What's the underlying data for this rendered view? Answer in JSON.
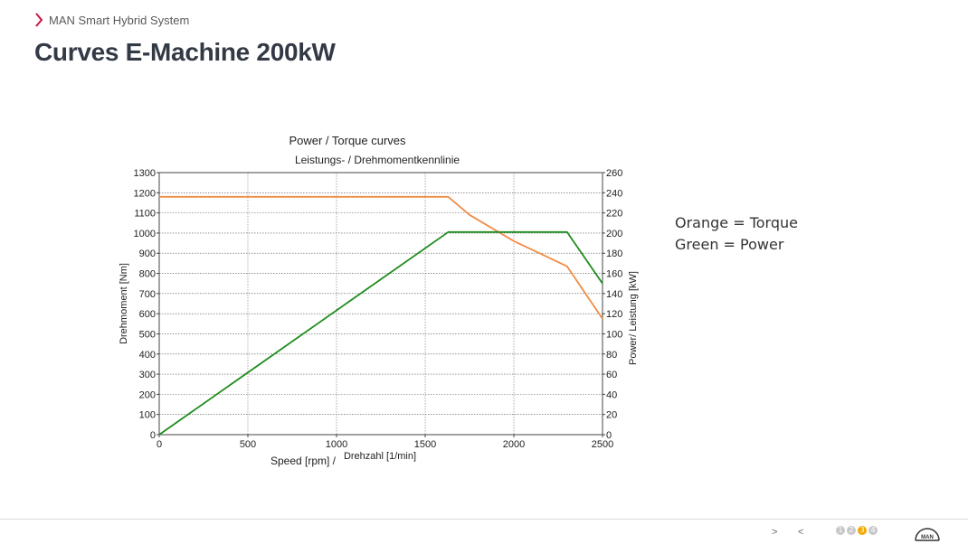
{
  "header": {
    "breadcrumb": "MAN Smart Hybrid System",
    "title": "Curves E-Machine 200kW"
  },
  "legend_note": {
    "torque": "Orange = Torque",
    "power": "Green = Power"
  },
  "colors": {
    "torque": "#f08c46",
    "power": "#1e8c1e",
    "accent": "#d0103a",
    "title": "#333a45",
    "active_page": "#f0a800"
  },
  "footer": {
    "next": ">",
    "prev": "<",
    "pages": [
      "1",
      "2",
      "3",
      "4"
    ],
    "active_page": "3",
    "logo_text": "MAN"
  },
  "chart_data": {
    "type": "line",
    "title": "Power / Torque curves",
    "subtitle": "Leistungs- / Drehmomentkennlinie",
    "xlabel": "Speed [rpm] /",
    "xlabel2": "Drehzahl [1/min]",
    "ylabel_left": "Drehmoment [Nm]",
    "ylabel_right": "Power/ Leistung [kW]",
    "xlim": [
      0,
      2500
    ],
    "ylim_left": [
      0,
      1300
    ],
    "ylim_right": [
      0,
      260
    ],
    "x_ticks": [
      0,
      500,
      1000,
      1500,
      2000,
      2500
    ],
    "y_left_ticks": [
      0,
      100,
      200,
      300,
      400,
      500,
      600,
      700,
      800,
      900,
      1000,
      1100,
      1200,
      1300
    ],
    "y_right_ticks": [
      0,
      20,
      40,
      60,
      80,
      100,
      120,
      140,
      160,
      180,
      200,
      220,
      240,
      260
    ],
    "grid": true,
    "series": [
      {
        "name": "Torque",
        "axis": "left",
        "color": "#f08c46",
        "x": [
          0,
          1630,
          1750,
          2000,
          2300,
          2500
        ],
        "y": [
          1180,
          1180,
          1090,
          960,
          835,
          575
        ]
      },
      {
        "name": "Power",
        "axis": "right",
        "color": "#1e8c1e",
        "x": [
          0,
          1630,
          2300,
          2500
        ],
        "y": [
          0,
          201,
          201,
          150
        ]
      }
    ]
  }
}
